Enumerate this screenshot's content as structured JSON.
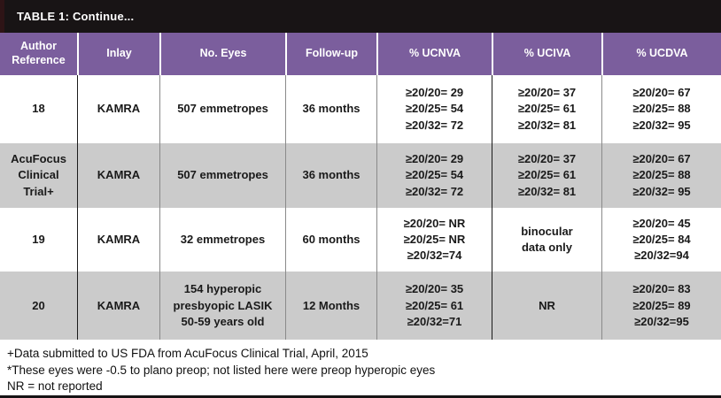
{
  "title": "TABLE 1: Continue...",
  "colors": {
    "title_bar_bg": "#181415",
    "header_bg": "#7b5e9d",
    "alt_row_bg": "#cbcbcb",
    "grid_line_gray": "#8a8a8a",
    "grid_line_black": "#1c1c1c"
  },
  "table": {
    "columns": [
      "Author\nReference",
      "Inlay",
      "No. Eyes",
      "Follow-up",
      "% UCNVA",
      "% UCIVA",
      "% UCDVA"
    ],
    "rows": [
      {
        "author": "18",
        "inlay": "KAMRA",
        "eyes": "507 emmetropes",
        "followup": "36 months",
        "ucnva": "≥20/20= 29\n≥20/25= 54\n≥20/32= 72",
        "uciva": "≥20/20= 37\n≥20/25= 61\n≥20/32= 81",
        "ucdva": "≥20/20= 67\n≥20/25= 88\n≥20/32= 95"
      },
      {
        "author": "AcuFocus\nClinical\nTrial+",
        "inlay": "KAMRA",
        "eyes": "507 emmetropes",
        "followup": "36 months",
        "ucnva": "≥20/20= 29\n≥20/25= 54\n≥20/32= 72",
        "uciva": "≥20/20= 37\n≥20/25= 61\n≥20/32= 81",
        "ucdva": "≥20/20= 67\n≥20/25= 88\n≥20/32= 95"
      },
      {
        "author": "19",
        "inlay": "KAMRA",
        "eyes": "32 emmetropes",
        "followup": "60 months",
        "ucnva": "≥20/20= NR\n≥20/25= NR\n≥20/32=74",
        "uciva": "binocular\ndata only",
        "ucdva": "≥20/20= 45\n≥20/25= 84\n≥20/32=94"
      },
      {
        "author": "20",
        "inlay": "KAMRA",
        "eyes": "154 hyperopic\npresbyopic LASIK\n50-59 years old",
        "followup": "12 Months",
        "ucnva": "≥20/20= 35\n≥20/25= 61\n≥20/32=71",
        "uciva": "NR",
        "ucdva": "≥20/20= 83\n≥20/25= 89\n≥20/32=95"
      }
    ]
  },
  "footnotes": [
    "+Data submitted to US FDA from AcuFocus Clinical Trial, April, 2015",
    "*These eyes were -0.5 to plano preop; not listed here were preop hyperopic eyes",
    "NR = not reported"
  ]
}
